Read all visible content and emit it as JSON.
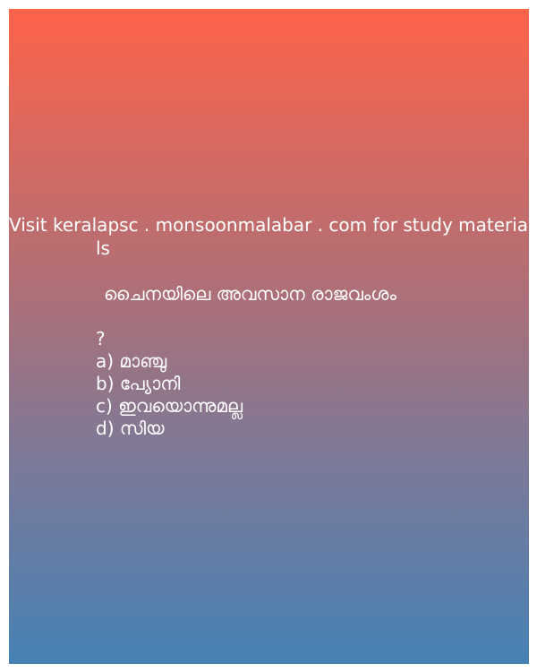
{
  "promo": {
    "line1": "Visit keralapsc . monsoonmalabar . com for study materia",
    "line2": "ls"
  },
  "question": {
    "text": "ചൈനയിലെ അവസാന രാജവംശം",
    "mark": "?"
  },
  "options": [
    "a) മാഞ്ചു",
    "b) പ്യോനി",
    "c) ഇവയൊന്നുമല്ല",
    "d) സിയ"
  ],
  "colors": {
    "gradient_top": "#fe634a",
    "gradient_bottom": "#4681b4",
    "text": "#ffffff"
  }
}
